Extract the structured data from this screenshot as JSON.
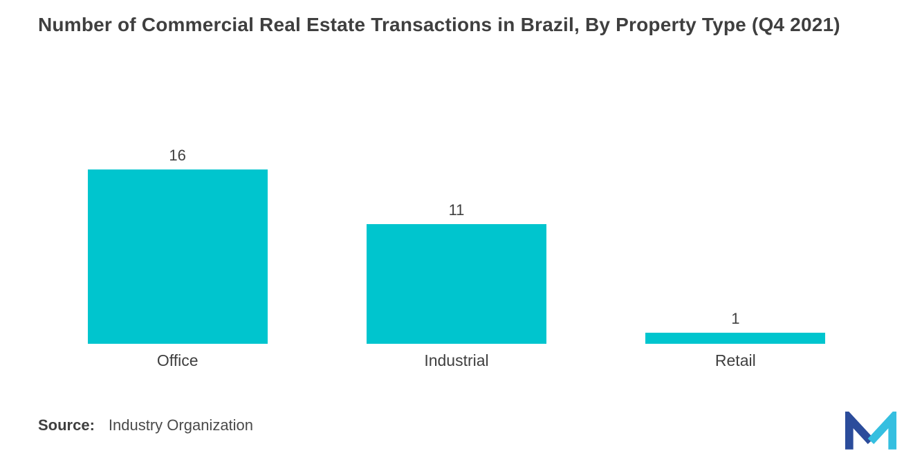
{
  "chart_data": {
    "type": "bar",
    "title": "Number of Commercial Real Estate Transactions in Brazil, By Property Type (Q4 2021)",
    "categories": [
      "Office",
      "Industrial",
      "Retail"
    ],
    "values": [
      16,
      11,
      1
    ],
    "xlabel": "",
    "ylabel": "",
    "ylim": [
      0,
      16
    ],
    "grid": false,
    "legend": "none",
    "bar_color": "#00C5CE",
    "label_color": "#3F3F3F"
  },
  "footer": {
    "source_label": "Source:",
    "source_value": "Industry Organization"
  },
  "logo": {
    "name": "mordor-intelligence-logo",
    "colors": [
      "#2B4C9B",
      "#35BFE0"
    ]
  }
}
